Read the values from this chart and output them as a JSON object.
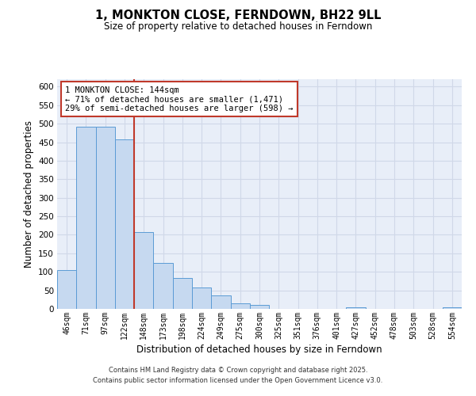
{
  "title": "1, MONKTON CLOSE, FERNDOWN, BH22 9LL",
  "subtitle": "Size of property relative to detached houses in Ferndown",
  "xlabel": "Distribution of detached houses by size in Ferndown",
  "ylabel": "Number of detached properties",
  "categories": [
    "46sqm",
    "71sqm",
    "97sqm",
    "122sqm",
    "148sqm",
    "173sqm",
    "198sqm",
    "224sqm",
    "249sqm",
    "275sqm",
    "300sqm",
    "325sqm",
    "351sqm",
    "376sqm",
    "401sqm",
    "427sqm",
    "452sqm",
    "478sqm",
    "503sqm",
    "528sqm",
    "554sqm"
  ],
  "values": [
    105,
    492,
    492,
    458,
    208,
    123,
    83,
    58,
    36,
    15,
    10,
    0,
    0,
    0,
    0,
    4,
    0,
    0,
    0,
    0,
    5
  ],
  "bar_color": "#c6d9f0",
  "bar_edge_color": "#5b9bd5",
  "vline_index": 4,
  "vline_color": "#c0392b",
  "annotation_text": "1 MONKTON CLOSE: 144sqm\n← 71% of detached houses are smaller (1,471)\n29% of semi-detached houses are larger (598) →",
  "annotation_box_color": "#ffffff",
  "annotation_box_edge": "#c0392b",
  "ylim": [
    0,
    620
  ],
  "yticks": [
    0,
    50,
    100,
    150,
    200,
    250,
    300,
    350,
    400,
    450,
    500,
    550,
    600
  ],
  "footer1": "Contains HM Land Registry data © Crown copyright and database right 2025.",
  "footer2": "Contains public sector information licensed under the Open Government Licence v3.0.",
  "background_color": "#ffffff",
  "grid_color": "#d0d8e8",
  "plot_bg_color": "#e8eef8"
}
